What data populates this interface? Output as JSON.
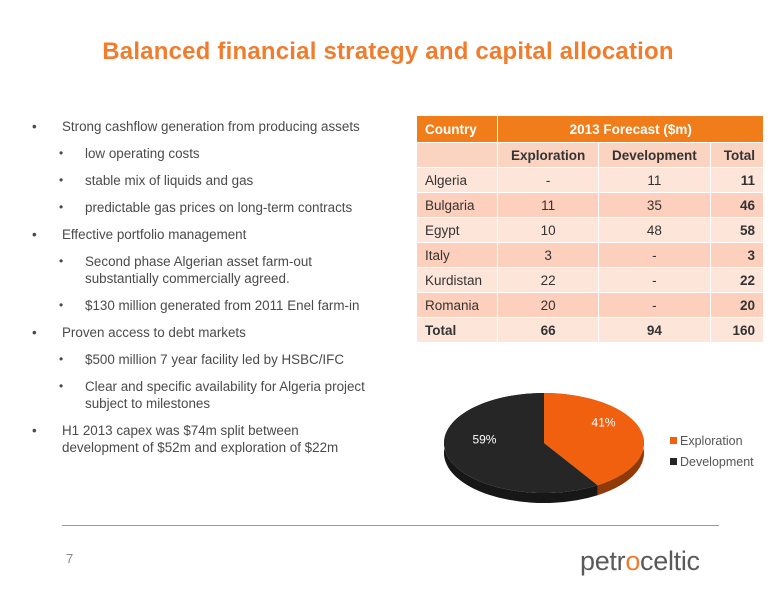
{
  "title": "Balanced financial strategy and capital allocation",
  "bullets": [
    {
      "level": 1,
      "lines": [
        "Strong cashflow generation from producing assets"
      ]
    },
    {
      "level": 2,
      "lines": [
        "low operating costs"
      ]
    },
    {
      "level": 2,
      "lines": [
        "stable mix of liquids and gas"
      ]
    },
    {
      "level": 2,
      "lines": [
        "predictable gas prices on long-term contracts"
      ]
    },
    {
      "level": 1,
      "lines": [
        "Effective portfolio management"
      ]
    },
    {
      "level": 2,
      "lines": [
        "Second phase Algerian asset farm-out",
        "substantially commercially agreed."
      ]
    },
    {
      "level": 2,
      "lines": [
        "$130 million generated from 2011 Enel farm-in"
      ]
    },
    {
      "level": 1,
      "lines": [
        "Proven access  to debt markets"
      ]
    },
    {
      "level": 2,
      "lines": [
        "$500 million 7 year facility led by HSBC/IFC"
      ]
    },
    {
      "level": 2,
      "lines": [
        "Clear and specific availability for Algeria project",
        "subject to milestones"
      ]
    },
    {
      "level": 1,
      "lines": [
        "H1 2013 capex was $74m split between",
        "development of $52m and exploration of $22m"
      ]
    }
  ],
  "table": {
    "col_country": "Country",
    "col_forecast": "2013 Forecast ($m)",
    "sub_exploration": "Exploration",
    "sub_development": "Development",
    "sub_total": "Total",
    "rows": [
      {
        "country": "Algeria",
        "exploration": "-",
        "development": "11",
        "total": "11"
      },
      {
        "country": "Bulgaria",
        "exploration": "11",
        "development": "35",
        "total": "46"
      },
      {
        "country": "Egypt",
        "exploration": "10",
        "development": "48",
        "total": "58"
      },
      {
        "country": "Italy",
        "exploration": "3",
        "development": "-",
        "total": "3"
      },
      {
        "country": "Kurdistan",
        "exploration": "22",
        "development": "-",
        "total": "22"
      },
      {
        "country": "Romania",
        "exploration": "20",
        "development": "-",
        "total": "20"
      }
    ],
    "total_row": {
      "country": "Total",
      "exploration": "66",
      "development": "94",
      "total": "160"
    }
  },
  "chart_data": {
    "type": "pie",
    "slices": [
      {
        "label": "Exploration",
        "value": 41,
        "value_label": "41%",
        "color": "#f0600f"
      },
      {
        "label": "Development",
        "value": 59,
        "value_label": "59%",
        "color": "#262626"
      }
    ],
    "legend_position": "right"
  },
  "footer": {
    "page_number": "7",
    "logo_part1": "petr",
    "logo_mark": "o",
    "logo_part2": "celtic"
  }
}
